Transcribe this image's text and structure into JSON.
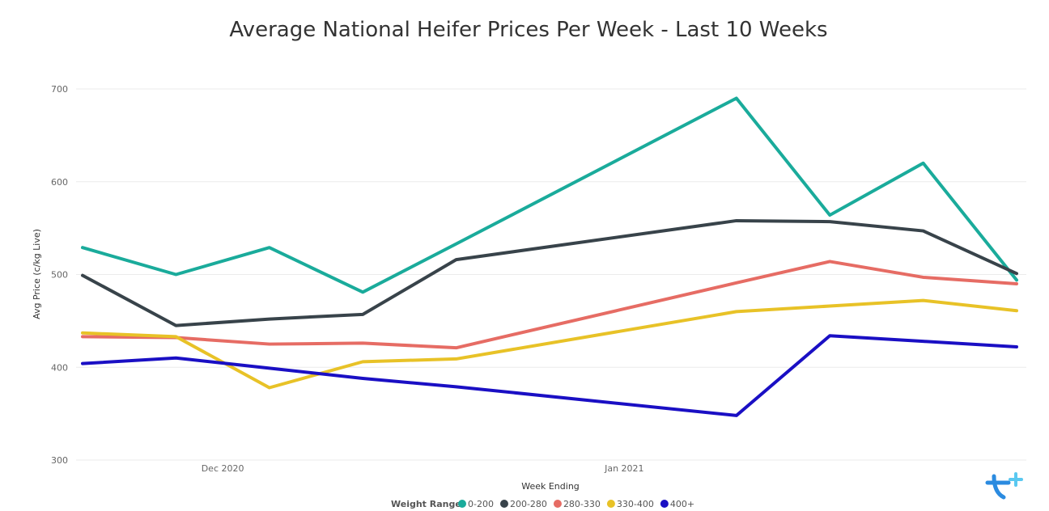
{
  "chart_data": {
    "type": "line",
    "title": "Average National Heifer Prices Per Week - Last 10 Weeks",
    "xlabel": "Week Ending",
    "ylabel": "Avg Price (c/kg Live)",
    "x_tick_labels": [
      {
        "label": "Dec 2020",
        "index": 1.5
      },
      {
        "label": "Jan 2021",
        "index": 5.8
      }
    ],
    "ylim": [
      300,
      700
    ],
    "yticks": [
      300,
      400,
      500,
      600,
      700
    ],
    "grid": true,
    "legend": {
      "title": "Weight Range",
      "placement": "bottom"
    },
    "x": [
      0,
      1,
      2,
      3,
      4,
      7,
      8,
      9,
      10
    ],
    "series": [
      {
        "name": "0-200",
        "color": "#1aab9b",
        "values": [
          529,
          500,
          529,
          481,
          533,
          690,
          564,
          620,
          494
        ]
      },
      {
        "name": "200-280",
        "color": "#38434a",
        "values": [
          499,
          445,
          452,
          457,
          516,
          558,
          557,
          547,
          501
        ]
      },
      {
        "name": "280-330",
        "color": "#e66c64",
        "values": [
          433,
          432,
          425,
          426,
          421,
          491,
          514,
          497,
          490
        ]
      },
      {
        "name": "330-400",
        "color": "#e8c227",
        "values": [
          437,
          433,
          378,
          406,
          409,
          460,
          466,
          472,
          461
        ]
      },
      {
        "name": "400+",
        "color": "#1a0fc4",
        "values": [
          404,
          410,
          399,
          388,
          379,
          348,
          434,
          428,
          422
        ]
      }
    ]
  },
  "logo": {
    "icon": "t-plus-logo-icon",
    "colors": [
      "#2b8be0",
      "#5ac8f0"
    ]
  }
}
